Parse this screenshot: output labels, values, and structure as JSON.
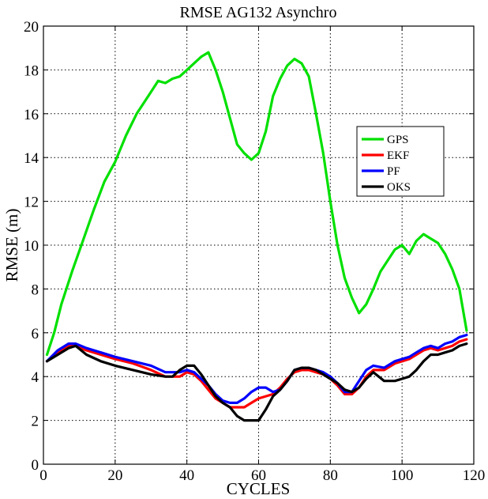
{
  "chart_data": {
    "type": "line",
    "title": "RMSE AG132 Asynchro",
    "xlabel": "CYCLES",
    "ylabel": "RMSE (m)",
    "xlim": [
      0,
      120
    ],
    "ylim": [
      0,
      20
    ],
    "xticks": [
      0,
      20,
      40,
      60,
      80,
      100,
      120
    ],
    "yticks": [
      0,
      2,
      4,
      6,
      8,
      10,
      12,
      14,
      16,
      18,
      20
    ],
    "grid": true,
    "legend_position": "right",
    "series": [
      {
        "name": "GPS",
        "color": "#00e000",
        "x": [
          1,
          3,
          5,
          8,
          11,
          14,
          17,
          20,
          23,
          26,
          28,
          30,
          32,
          34,
          36,
          38,
          40,
          42,
          44,
          46,
          48,
          50,
          52,
          54,
          56,
          58,
          60,
          62,
          64,
          66,
          68,
          70,
          72,
          74,
          76,
          78,
          80,
          82,
          84,
          86,
          88,
          90,
          92,
          94,
          96,
          98,
          100,
          102,
          104,
          106,
          108,
          110,
          112,
          114,
          116,
          118
        ],
        "y": [
          5.0,
          6.0,
          7.3,
          8.8,
          10.2,
          11.6,
          12.9,
          13.8,
          15.0,
          16.0,
          16.5,
          17.0,
          17.5,
          17.4,
          17.6,
          17.7,
          18.0,
          18.3,
          18.6,
          18.8,
          18.0,
          17.0,
          15.8,
          14.6,
          14.2,
          13.9,
          14.2,
          15.2,
          16.8,
          17.6,
          18.2,
          18.5,
          18.3,
          17.7,
          16.0,
          14.2,
          12.0,
          10.0,
          8.5,
          7.6,
          6.9,
          7.3,
          8.0,
          8.8,
          9.3,
          9.8,
          10.0,
          9.6,
          10.2,
          10.5,
          10.3,
          10.1,
          9.6,
          8.9,
          8.0,
          6.1
        ]
      },
      {
        "name": "EKF",
        "color": "#ff0000",
        "x": [
          1,
          4,
          7,
          9,
          12,
          16,
          20,
          25,
          30,
          34,
          38,
          40,
          42,
          44,
          46,
          48,
          50,
          52,
          54,
          56,
          58,
          60,
          62,
          64,
          66,
          68,
          70,
          72,
          74,
          76,
          78,
          80,
          82,
          84,
          86,
          88,
          90,
          92,
          95,
          98,
          100,
          102,
          104,
          106,
          108,
          110,
          112,
          114,
          116,
          118
        ],
        "y": [
          4.7,
          5.1,
          5.4,
          5.4,
          5.2,
          5.0,
          4.8,
          4.6,
          4.3,
          4.0,
          4.0,
          4.2,
          4.1,
          3.8,
          3.4,
          3.0,
          2.8,
          2.6,
          2.6,
          2.6,
          2.8,
          3.0,
          3.1,
          3.2,
          3.5,
          3.9,
          4.2,
          4.3,
          4.3,
          4.2,
          4.1,
          3.9,
          3.6,
          3.2,
          3.2,
          3.5,
          4.0,
          4.3,
          4.3,
          4.6,
          4.7,
          4.8,
          5.0,
          5.2,
          5.3,
          5.2,
          5.3,
          5.4,
          5.6,
          5.7
        ]
      },
      {
        "name": "PF",
        "color": "#0000ff",
        "x": [
          1,
          4,
          7,
          9,
          12,
          16,
          20,
          25,
          30,
          34,
          38,
          40,
          42,
          44,
          46,
          48,
          50,
          52,
          54,
          56,
          58,
          60,
          62,
          64,
          66,
          68,
          70,
          72,
          74,
          76,
          78,
          80,
          82,
          84,
          86,
          88,
          90,
          92,
          95,
          98,
          100,
          102,
          104,
          106,
          108,
          110,
          112,
          114,
          116,
          118
        ],
        "y": [
          4.7,
          5.2,
          5.5,
          5.5,
          5.3,
          5.1,
          4.9,
          4.7,
          4.5,
          4.2,
          4.2,
          4.3,
          4.2,
          3.9,
          3.6,
          3.2,
          2.9,
          2.8,
          2.8,
          3.0,
          3.3,
          3.5,
          3.5,
          3.3,
          3.4,
          3.8,
          4.3,
          4.4,
          4.4,
          4.3,
          4.2,
          4.0,
          3.7,
          3.3,
          3.3,
          3.8,
          4.3,
          4.5,
          4.4,
          4.7,
          4.8,
          4.9,
          5.1,
          5.3,
          5.4,
          5.3,
          5.5,
          5.6,
          5.8,
          5.9
        ]
      },
      {
        "name": "OKS",
        "color": "#000000",
        "x": [
          1,
          4,
          7,
          9,
          12,
          16,
          20,
          25,
          30,
          34,
          36,
          38,
          40,
          42,
          44,
          46,
          48,
          50,
          52,
          54,
          56,
          58,
          60,
          62,
          64,
          66,
          68,
          70,
          72,
          74,
          76,
          78,
          80,
          82,
          84,
          86,
          88,
          90,
          92,
          95,
          98,
          100,
          102,
          104,
          106,
          108,
          110,
          112,
          114,
          116,
          118
        ],
        "y": [
          4.7,
          5.0,
          5.3,
          5.4,
          5.0,
          4.7,
          4.5,
          4.3,
          4.1,
          4.0,
          4.0,
          4.3,
          4.5,
          4.5,
          4.1,
          3.6,
          3.1,
          2.8,
          2.6,
          2.2,
          2.0,
          2.0,
          2.0,
          2.5,
          3.1,
          3.4,
          3.8,
          4.3,
          4.4,
          4.4,
          4.3,
          4.1,
          3.9,
          3.7,
          3.4,
          3.3,
          3.5,
          3.9,
          4.2,
          3.8,
          3.8,
          3.9,
          4.0,
          4.3,
          4.7,
          5.0,
          5.0,
          5.1,
          5.2,
          5.4,
          5.5
        ]
      }
    ]
  }
}
